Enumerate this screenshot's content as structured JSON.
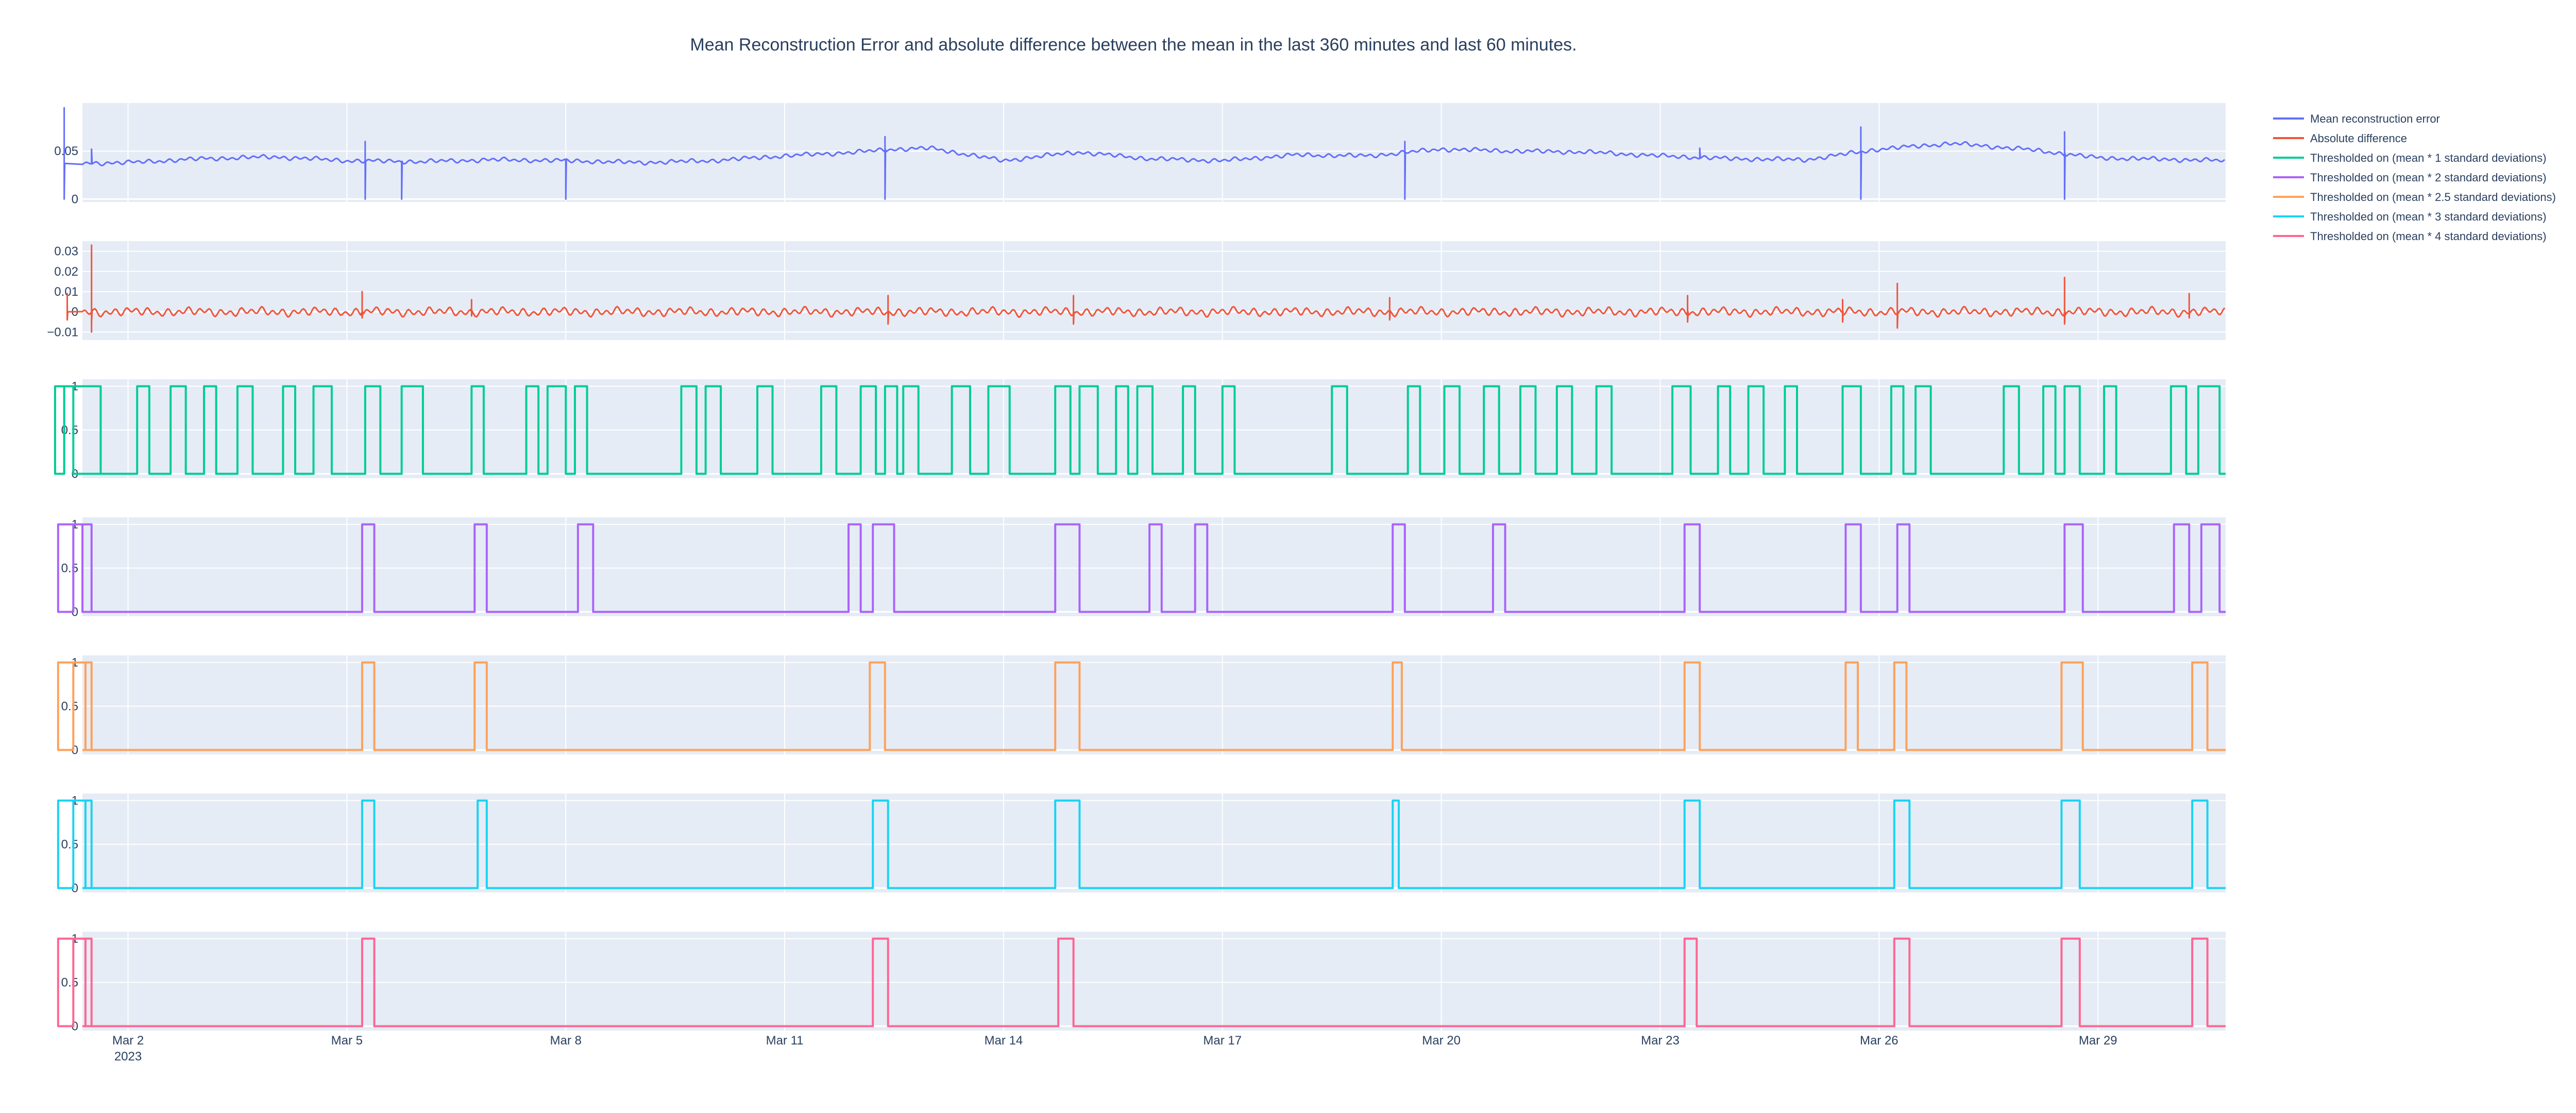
{
  "title": "Mean Reconstruction Error and absolute difference between the mean in the last 360 minutes and last 60 minutes.",
  "colors": {
    "plot_bg": "#e5ecf6",
    "grid": "#ffffff",
    "text": "#2a3f5f",
    "series": [
      "#636efa",
      "#ef553b",
      "#00cc96",
      "#ab63fa",
      "#ffa15a",
      "#19d3f3",
      "#ff6692"
    ]
  },
  "legend": [
    "Mean reconstruction error",
    "Absolute difference",
    "Thresholded on (mean * 1 standard deviations)",
    "Thresholded on (mean * 2 standard deviations)",
    "Thresholded on (mean * 2.5 standard deviations)",
    "Thresholded on (mean * 3 standard deviations)",
    "Thresholded on (mean * 4 standard deviations)"
  ],
  "chart_data": {
    "type": "line",
    "title": "Mean Reconstruction Error and absolute difference between the mean in the last 360 minutes and last 60 minutes.",
    "x_range": [
      "2023-02-29T09:00",
      "2023-03-30T18:00"
    ],
    "x_ticks": [
      {
        "x": "2023-03-02",
        "label": "Mar 2",
        "sublabel": "2023"
      },
      {
        "x": "2023-03-05",
        "label": "Mar 5"
      },
      {
        "x": "2023-03-08",
        "label": "Mar 8"
      },
      {
        "x": "2023-03-11",
        "label": "Mar 11"
      },
      {
        "x": "2023-03-14",
        "label": "Mar 14"
      },
      {
        "x": "2023-03-17",
        "label": "Mar 17"
      },
      {
        "x": "2023-03-20",
        "label": "Mar 20"
      },
      {
        "x": "2023-03-23",
        "label": "Mar 23"
      },
      {
        "x": "2023-03-26",
        "label": "Mar 26"
      },
      {
        "x": "2023-03-29",
        "label": "Mar 29"
      }
    ],
    "grid": true,
    "legend_position": "right",
    "subplots": [
      {
        "name": "Mean reconstruction error",
        "kind": "continuous",
        "ylim": [
          -0.003,
          0.1
        ],
        "y_ticks": [
          {
            "v": 0,
            "label": "0"
          },
          {
            "v": 0.05,
            "label": "0.05"
          }
        ],
        "baseline": [
          [
            "2023-02-29T09:00",
            0.04
          ],
          [
            "2023-03-01",
            0.037
          ],
          [
            "2023-03-02",
            0.038
          ],
          [
            "2023-03-03",
            0.042
          ],
          [
            "2023-03-04",
            0.044
          ],
          [
            "2023-03-05",
            0.04
          ],
          [
            "2023-03-06",
            0.039
          ],
          [
            "2023-03-07",
            0.041
          ],
          [
            "2023-03-08",
            0.04
          ],
          [
            "2023-03-09",
            0.038
          ],
          [
            "2023-03-10",
            0.04
          ],
          [
            "2023-03-11",
            0.045
          ],
          [
            "2023-03-12",
            0.049
          ],
          [
            "2023-03-12T12:00",
            0.052
          ],
          [
            "2023-03-13",
            0.053
          ],
          [
            "2023-03-14",
            0.04
          ],
          [
            "2023-03-15",
            0.049
          ],
          [
            "2023-03-16",
            0.042
          ],
          [
            "2023-03-17",
            0.04
          ],
          [
            "2023-03-18",
            0.046
          ],
          [
            "2023-03-19",
            0.045
          ],
          [
            "2023-03-20",
            0.052
          ],
          [
            "2023-03-21",
            0.05
          ],
          [
            "2023-03-22",
            0.049
          ],
          [
            "2023-03-23",
            0.045
          ],
          [
            "2023-03-24",
            0.042
          ],
          [
            "2023-03-25",
            0.041
          ],
          [
            "2023-03-26",
            0.052
          ],
          [
            "2023-03-27",
            0.058
          ],
          [
            "2023-03-28",
            0.052
          ],
          [
            "2023-03-29",
            0.043
          ],
          [
            "2023-03-30T18:00",
            0.04
          ]
        ],
        "spikes": [
          {
            "x": "2023-03-01T03:00",
            "values": [
              0.095,
              0.0
            ]
          },
          {
            "x": "2023-03-01T12:00",
            "values": [
              0.052
            ]
          },
          {
            "x": "2023-03-05T06:00",
            "values": [
              0.06,
              0.0
            ]
          },
          {
            "x": "2023-03-05T18:00",
            "values": [
              0.0
            ]
          },
          {
            "x": "2023-03-08T00:00",
            "values": [
              0.0
            ]
          },
          {
            "x": "2023-03-12T09:00",
            "values": [
              0.065,
              0.0
            ]
          },
          {
            "x": "2023-03-19T12:00",
            "values": [
              0.06,
              0.0
            ]
          },
          {
            "x": "2023-03-23T13:00",
            "values": [
              0.053
            ]
          },
          {
            "x": "2023-03-25T18:00",
            "values": [
              0.075,
              0.0
            ]
          },
          {
            "x": "2023-03-28T13:00",
            "values": [
              0.07,
              0.0
            ]
          }
        ]
      },
      {
        "name": "Absolute difference",
        "kind": "continuous",
        "ylim": [
          -0.014,
          0.035
        ],
        "y_ticks": [
          {
            "v": -0.01,
            "label": "−0.01"
          },
          {
            "v": 0,
            "label": "0"
          },
          {
            "v": 0.01,
            "label": "0.01"
          },
          {
            "v": 0.02,
            "label": "0.02"
          },
          {
            "v": 0.03,
            "label": "0.03"
          }
        ],
        "baseline": [
          [
            "2023-02-29T09:00",
            0.0
          ],
          [
            "2023-03-30T18:00",
            0.0
          ]
        ],
        "spikes": [
          {
            "x": "2023-02-29T12:00",
            "values": [
              0.033,
              -0.01,
              -0.005
            ]
          },
          {
            "x": "2023-03-01T04:00",
            "values": [
              0.009,
              -0.004
            ]
          },
          {
            "x": "2023-03-05T05:00",
            "values": [
              0.01,
              -0.003
            ]
          },
          {
            "x": "2023-03-06T17:00",
            "values": [
              0.006,
              -0.002
            ]
          },
          {
            "x": "2023-03-12T10:00",
            "values": [
              0.008,
              -0.006
            ]
          },
          {
            "x": "2023-03-14T23:00",
            "values": [
              0.008,
              -0.006
            ]
          },
          {
            "x": "2023-03-19T07:00",
            "values": [
              0.007,
              -0.004
            ]
          },
          {
            "x": "2023-03-23T09:00",
            "values": [
              0.008,
              -0.005
            ]
          },
          {
            "x": "2023-03-25T12:00",
            "values": [
              0.006,
              -0.005
            ]
          },
          {
            "x": "2023-03-26T06:00",
            "values": [
              0.014,
              -0.008
            ]
          },
          {
            "x": "2023-03-28T13:00",
            "values": [
              0.017,
              -0.006
            ]
          },
          {
            "x": "2023-03-30T06:00",
            "values": [
              0.009,
              -0.003
            ]
          }
        ]
      },
      {
        "name": "Thresholded on (mean * 1 standard deviations)",
        "kind": "binary",
        "ylim": [
          -0.05,
          1.08
        ],
        "y_ticks": [
          {
            "v": 0,
            "label": "0"
          },
          {
            "v": 0.5,
            "label": "0.5"
          },
          {
            "v": 1,
            "label": "1"
          }
        ],
        "pulses": [
          [
            "2023-02-29T15:00",
            "2023-03-01T00:00"
          ],
          [
            "2023-03-01T03:00",
            "2023-03-01T06:00"
          ],
          [
            "2023-03-02T03:00",
            "2023-03-02T07:00"
          ],
          [
            "2023-03-02T14:00",
            "2023-03-02T19:00"
          ],
          [
            "2023-03-03T01:00",
            "2023-03-03T05:00"
          ],
          [
            "2023-03-03T12:00",
            "2023-03-03T17:00"
          ],
          [
            "2023-03-04T03:00",
            "2023-03-04T07:00"
          ],
          [
            "2023-03-04T13:00",
            "2023-03-04T19:00"
          ],
          [
            "2023-03-05T06:00",
            "2023-03-05T11:00"
          ],
          [
            "2023-03-05T18:00",
            "2023-03-06T01:00"
          ],
          [
            "2023-03-06T17:00",
            "2023-03-06T21:00"
          ],
          [
            "2023-03-07T11:00",
            "2023-03-07T15:00"
          ],
          [
            "2023-03-07T18:00",
            "2023-03-08T00:00"
          ],
          [
            "2023-03-08T03:00",
            "2023-03-08T07:00"
          ],
          [
            "2023-03-09T14:00",
            "2023-03-09T19:00"
          ],
          [
            "2023-03-09T22:00",
            "2023-03-10T03:00"
          ],
          [
            "2023-03-10T15:00",
            "2023-03-10T20:00"
          ],
          [
            "2023-03-11T12:00",
            "2023-03-11T17:00"
          ],
          [
            "2023-03-12T01:00",
            "2023-03-12T06:00"
          ],
          [
            "2023-03-12T09:00",
            "2023-03-12T13:00"
          ],
          [
            "2023-03-12T15:00",
            "2023-03-12T20:00"
          ],
          [
            "2023-03-13T07:00",
            "2023-03-13T13:00"
          ],
          [
            "2023-03-13T19:00",
            "2023-03-14T02:00"
          ],
          [
            "2023-03-14T17:00",
            "2023-03-14T22:00"
          ],
          [
            "2023-03-15T01:00",
            "2023-03-15T07:00"
          ],
          [
            "2023-03-15T13:00",
            "2023-03-15T17:00"
          ],
          [
            "2023-03-15T20:00",
            "2023-03-16T01:00"
          ],
          [
            "2023-03-16T11:00",
            "2023-03-16T15:00"
          ],
          [
            "2023-03-17T00:00",
            "2023-03-17T04:00"
          ],
          [
            "2023-03-18T12:00",
            "2023-03-18T17:00"
          ],
          [
            "2023-03-19T13:00",
            "2023-03-19T17:00"
          ],
          [
            "2023-03-20T01:00",
            "2023-03-20T06:00"
          ],
          [
            "2023-03-20T14:00",
            "2023-03-20T19:00"
          ],
          [
            "2023-03-21T02:00",
            "2023-03-21T07:00"
          ],
          [
            "2023-03-21T14:00",
            "2023-03-21T19:00"
          ],
          [
            "2023-03-22T03:00",
            "2023-03-22T08:00"
          ],
          [
            "2023-03-23T04:00",
            "2023-03-23T10:00"
          ],
          [
            "2023-03-23T19:00",
            "2023-03-23T23:00"
          ],
          [
            "2023-03-24T05:00",
            "2023-03-24T10:00"
          ],
          [
            "2023-03-24T17:00",
            "2023-03-24T21:00"
          ],
          [
            "2023-03-25T12:00",
            "2023-03-25T18:00"
          ],
          [
            "2023-03-26T04:00",
            "2023-03-26T08:00"
          ],
          [
            "2023-03-26T12:00",
            "2023-03-26T17:00"
          ],
          [
            "2023-03-27T17:00",
            "2023-03-27T22:00"
          ],
          [
            "2023-03-28T06:00",
            "2023-03-28T10:00"
          ],
          [
            "2023-03-28T13:00",
            "2023-03-28T18:00"
          ],
          [
            "2023-03-29T02:00",
            "2023-03-29T06:00"
          ],
          [
            "2023-03-30T00:00",
            "2023-03-30T05:00"
          ],
          [
            "2023-03-30T09:00",
            "2023-03-30T16:00"
          ]
        ]
      },
      {
        "name": "Thresholded on (mean * 2 standard deviations)",
        "kind": "binary",
        "ylim": [
          -0.05,
          1.08
        ],
        "y_ticks": [
          {
            "v": 0,
            "label": "0"
          },
          {
            "v": 0.5,
            "label": "0.5"
          },
          {
            "v": 1,
            "label": "1"
          }
        ],
        "pulses": [
          [
            "2023-02-29T12:00",
            "2023-03-01T01:00"
          ],
          [
            "2023-03-01T06:00",
            "2023-03-01T09:00"
          ],
          [
            "2023-03-05T05:00",
            "2023-03-05T09:00"
          ],
          [
            "2023-03-06T18:00",
            "2023-03-06T22:00"
          ],
          [
            "2023-03-08T04:00",
            "2023-03-08T09:00"
          ],
          [
            "2023-03-11T21:00",
            "2023-03-12T01:00"
          ],
          [
            "2023-03-12T05:00",
            "2023-03-12T12:00"
          ],
          [
            "2023-03-14T17:00",
            "2023-03-15T01:00"
          ],
          [
            "2023-03-16T00:00",
            "2023-03-16T04:00"
          ],
          [
            "2023-03-16T15:00",
            "2023-03-16T19:00"
          ],
          [
            "2023-03-19T08:00",
            "2023-03-19T12:00"
          ],
          [
            "2023-03-20T17:00",
            "2023-03-20T21:00"
          ],
          [
            "2023-03-23T08:00",
            "2023-03-23T13:00"
          ],
          [
            "2023-03-25T13:00",
            "2023-03-25T18:00"
          ],
          [
            "2023-03-26T06:00",
            "2023-03-26T10:00"
          ],
          [
            "2023-03-28T13:00",
            "2023-03-28T19:00"
          ],
          [
            "2023-03-30T01:00",
            "2023-03-30T06:00"
          ],
          [
            "2023-03-30T10:00",
            "2023-03-30T16:00"
          ]
        ]
      },
      {
        "name": "Thresholded on (mean * 2.5 standard deviations)",
        "kind": "binary",
        "ylim": [
          -0.05,
          1.08
        ],
        "y_ticks": [
          {
            "v": 0,
            "label": "0"
          },
          {
            "v": 0.5,
            "label": "0.5"
          },
          {
            "v": 1,
            "label": "1"
          }
        ],
        "pulses": [
          [
            "2023-02-29T12:00",
            "2023-03-01T01:00"
          ],
          [
            "2023-03-01T06:00",
            "2023-03-01T10:00"
          ],
          [
            "2023-03-05T05:00",
            "2023-03-05T09:00"
          ],
          [
            "2023-03-06T18:00",
            "2023-03-06T22:00"
          ],
          [
            "2023-03-12T04:00",
            "2023-03-12T09:00"
          ],
          [
            "2023-03-14T17:00",
            "2023-03-15T01:00"
          ],
          [
            "2023-03-19T08:00",
            "2023-03-19T11:00"
          ],
          [
            "2023-03-23T08:00",
            "2023-03-23T13:00"
          ],
          [
            "2023-03-25T13:00",
            "2023-03-25T17:00"
          ],
          [
            "2023-03-26T05:00",
            "2023-03-26T09:00"
          ],
          [
            "2023-03-28T12:00",
            "2023-03-28T19:00"
          ],
          [
            "2023-03-30T07:00",
            "2023-03-30T12:00"
          ]
        ]
      },
      {
        "name": "Thresholded on (mean * 3 standard deviations)",
        "kind": "binary",
        "ylim": [
          -0.05,
          1.08
        ],
        "y_ticks": [
          {
            "v": 0,
            "label": "0"
          },
          {
            "v": 0.5,
            "label": "0.5"
          },
          {
            "v": 1,
            "label": "1"
          }
        ],
        "pulses": [
          [
            "2023-02-29T12:00",
            "2023-03-01T01:00"
          ],
          [
            "2023-03-01T06:00",
            "2023-03-01T10:00"
          ],
          [
            "2023-03-05T05:00",
            "2023-03-05T09:00"
          ],
          [
            "2023-03-06T19:00",
            "2023-03-06T22:00"
          ],
          [
            "2023-03-12T05:00",
            "2023-03-12T10:00"
          ],
          [
            "2023-03-14T17:00",
            "2023-03-15T01:00"
          ],
          [
            "2023-03-19T08:00",
            "2023-03-19T10:00"
          ],
          [
            "2023-03-23T08:00",
            "2023-03-23T13:00"
          ],
          [
            "2023-03-26T05:00",
            "2023-03-26T10:00"
          ],
          [
            "2023-03-28T12:00",
            "2023-03-28T18:00"
          ],
          [
            "2023-03-30T07:00",
            "2023-03-30T12:00"
          ]
        ]
      },
      {
        "name": "Thresholded on (mean * 4 standard deviations)",
        "kind": "binary",
        "ylim": [
          -0.05,
          1.08
        ],
        "y_ticks": [
          {
            "v": 0,
            "label": "0"
          },
          {
            "v": 0.5,
            "label": "0.5"
          },
          {
            "v": 1,
            "label": "1"
          }
        ],
        "pulses": [
          [
            "2023-02-29T12:00",
            "2023-03-01T01:00"
          ],
          [
            "2023-03-01T06:00",
            "2023-03-01T10:00"
          ],
          [
            "2023-03-05T05:00",
            "2023-03-05T09:00"
          ],
          [
            "2023-03-12T05:00",
            "2023-03-12T10:00"
          ],
          [
            "2023-03-14T18:00",
            "2023-03-14T23:00"
          ],
          [
            "2023-03-23T08:00",
            "2023-03-23T12:00"
          ],
          [
            "2023-03-26T05:00",
            "2023-03-26T10:00"
          ],
          [
            "2023-03-28T12:00",
            "2023-03-28T18:00"
          ],
          [
            "2023-03-30T07:00",
            "2023-03-30T12:00"
          ]
        ]
      }
    ]
  }
}
